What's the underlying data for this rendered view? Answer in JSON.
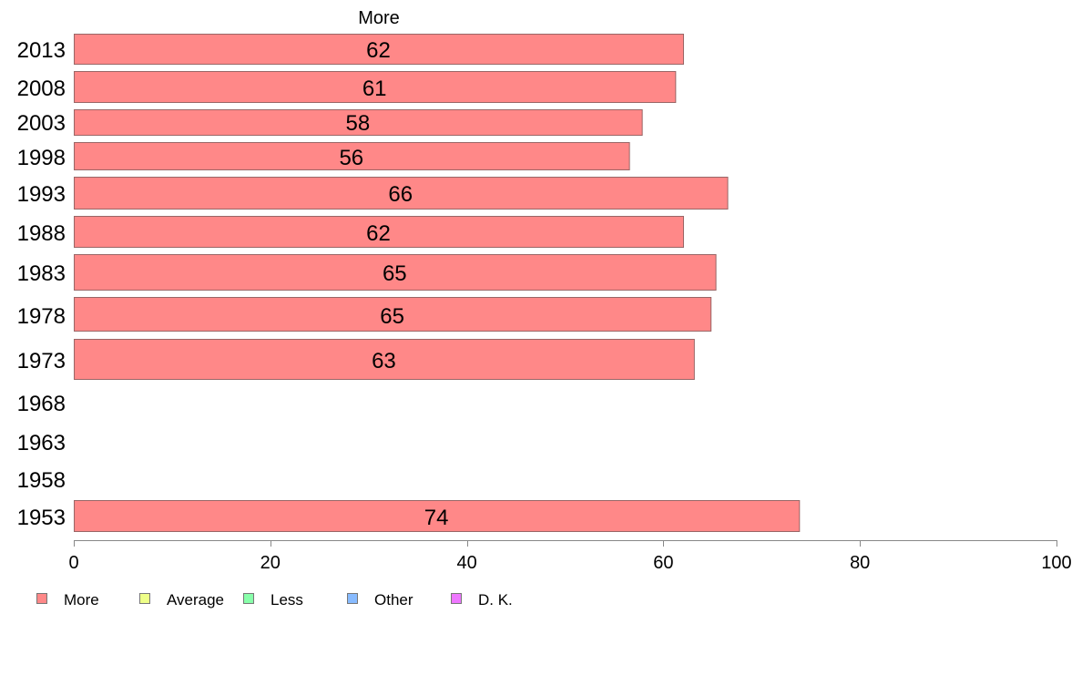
{
  "chart_data": {
    "type": "bar",
    "orientation": "horizontal",
    "title": "More",
    "categories": [
      "2013",
      "2008",
      "2003",
      "1998",
      "1993",
      "1988",
      "1983",
      "1978",
      "1973",
      "1968",
      "1963",
      "1958",
      "1953"
    ],
    "series": [
      {
        "name": "More",
        "values": [
          62,
          61,
          58,
          56,
          66,
          62,
          65,
          65,
          63,
          null,
          null,
          null,
          74
        ],
        "display_values": [
          62,
          61.2,
          57.8,
          56.5,
          66.5,
          62,
          65.3,
          64.8,
          63.1,
          null,
          null,
          null,
          73.8
        ]
      }
    ],
    "xlim": [
      0,
      100
    ],
    "x_ticks": [
      0,
      20,
      40,
      60,
      80,
      100
    ],
    "xlabel": "",
    "ylabel": "",
    "grid": false,
    "legend": {
      "placement": "bottom-left",
      "items": [
        {
          "label": "More",
          "color": "#ff8888"
        },
        {
          "label": "Average",
          "color": "#eeff88"
        },
        {
          "label": "Less",
          "color": "#88ffaa"
        },
        {
          "label": "Other",
          "color": "#88bbff"
        },
        {
          "label": "D. K.",
          "color": "#ee77ff"
        }
      ]
    },
    "colors": {
      "bar_fill": "#ff8888",
      "bar_stroke": "#996666",
      "axis": "#888888"
    }
  }
}
